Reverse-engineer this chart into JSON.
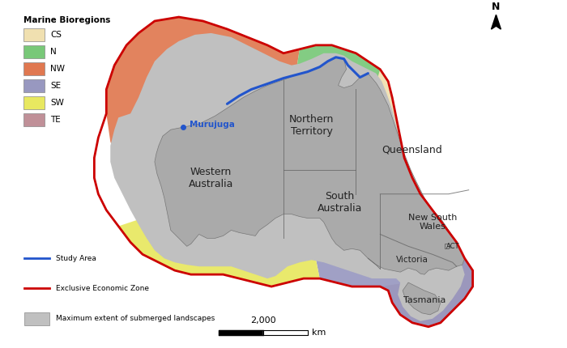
{
  "figsize": [
    7.0,
    4.3
  ],
  "dpi": 100,
  "bg_color": "#ffffff",
  "ocean_color": "#e8f0f8",
  "bioregion_colors": {
    "CS": "#f0e0b0",
    "N": "#78c878",
    "NW": "#e07850",
    "SE": "#9898c0",
    "SW": "#e8e860",
    "TE": "#c09098"
  },
  "australia_fill": "#aaaaaa",
  "submerged_fill": "#c0c0c0",
  "eez_color": "#cc0000",
  "study_area_color": "#2255cc",
  "state_line_color": "#666666",
  "legend_title": "Marine Bioregions",
  "legend_items": [
    "CS",
    "N",
    "NW",
    "SE",
    "SW",
    "TE"
  ],
  "line_legend": [
    {
      "label": "Study Area",
      "color": "#2255cc",
      "lw": 2.0,
      "patch": false
    },
    {
      "label": "Exclusive Economic Zone",
      "color": "#cc0000",
      "lw": 2.0,
      "patch": false
    },
    {
      "label": "Maximum extent of submerged landscapes",
      "color": "#c0c0c0",
      "lw": 0,
      "patch": true
    }
  ],
  "scale_label": "2,000",
  "scale_unit": "km",
  "murujuga_label": "Murujuga",
  "compass_label": "N",
  "lon_min": 96,
  "lon_max": 162,
  "lat_min": -48,
  "lat_max": -6
}
